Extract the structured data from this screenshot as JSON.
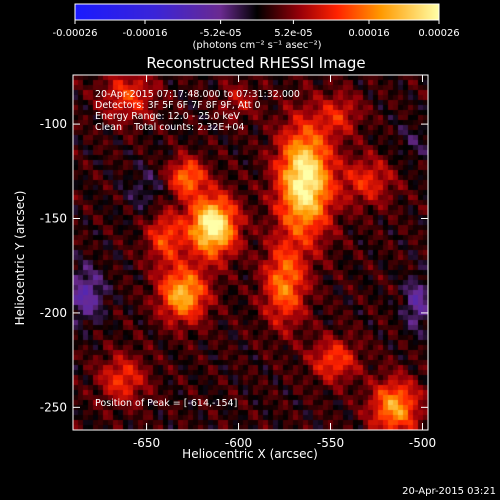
{
  "chart_data": {
    "type": "heatmap",
    "title": "Reconstructed RHESSI Image",
    "xlabel": "Heliocentric X (arcsec)",
    "ylabel": "Heliocentric Y (arcsec)",
    "xlim": [
      -690,
      -497
    ],
    "ylim": [
      -262,
      -74
    ],
    "x_ticks": [
      -650,
      -600,
      -550,
      -500
    ],
    "x_tick_labels": [
      "-650",
      "-600",
      "-550",
      "-500"
    ],
    "y_ticks": [
      -250,
      -200,
      -150,
      -100
    ],
    "y_tick_labels": [
      "-250",
      "-200",
      "-150",
      "-100"
    ],
    "colorbar": {
      "range": [
        -0.00026,
        0.00026
      ],
      "ticks": [
        -0.00026,
        -0.00016,
        -5.2e-05,
        5.2e-05,
        0.00016,
        0.00026
      ],
      "tick_labels": [
        "-0.00026",
        "-0.00016",
        "-5.2e-05",
        "5.2e-05",
        "0.00016",
        "0.00026"
      ],
      "unit_label": "(photons cm⁻² s⁻¹ asec⁻²)"
    },
    "annotations": [
      "20-Apr-2015 07:17:48.000 to 07:31:32.000",
      "Detectors: 3F 5F 6F 7F 8F 9F, Att 0",
      "Energy Range: 12.0 - 25.0 keV",
      "Clean    Total counts: 2.32E+04"
    ],
    "peak_label": "Position of Peak = [-614,-154]",
    "peak": [
      -614,
      -154
    ],
    "sources": [
      {
        "x": -614,
        "y": -154,
        "sx": 9,
        "sy": 11,
        "amp": 1.0
      },
      {
        "x": -564,
        "y": -130,
        "sx": 10,
        "sy": 20,
        "amp": 0.98
      },
      {
        "x": -630,
        "y": -190,
        "sx": 9,
        "sy": 10,
        "amp": 0.72
      },
      {
        "x": -628,
        "y": -128,
        "sx": 7,
        "sy": 7,
        "amp": 0.55
      },
      {
        "x": -575,
        "y": -185,
        "sx": 8,
        "sy": 15,
        "amp": 0.55
      },
      {
        "x": -640,
        "y": -160,
        "sx": 7,
        "sy": 10,
        "amp": 0.42
      },
      {
        "x": -548,
        "y": -225,
        "sx": 9,
        "sy": 8,
        "amp": 0.42
      },
      {
        "x": -515,
        "y": -250,
        "sx": 9,
        "sy": 10,
        "amp": 0.65
      },
      {
        "x": -663,
        "y": -235,
        "sx": 9,
        "sy": 9,
        "amp": 0.38
      },
      {
        "x": -530,
        "y": -130,
        "sx": 10,
        "sy": 9,
        "amp": 0.35
      },
      {
        "x": -660,
        "y": -85,
        "sx": 10,
        "sy": 9,
        "amp": 0.38
      },
      {
        "x": -545,
        "y": -95,
        "sx": 8,
        "sy": 8,
        "amp": 0.3
      },
      {
        "x": -600,
        "y": -88,
        "sx": 7,
        "sy": 7,
        "amp": 0.22
      }
    ],
    "negative_regions": [
      {
        "x": -683,
        "y": -190,
        "sx": 7,
        "sy": 10,
        "amp": 0.35
      },
      {
        "x": -503,
        "y": -195,
        "sx": 5,
        "sy": 10,
        "amp": 0.32
      },
      {
        "x": -650,
        "y": -135,
        "sx": 8,
        "sy": 9,
        "amp": 0.15
      },
      {
        "x": -505,
        "y": -110,
        "sx": 8,
        "sy": 8,
        "amp": 0.12
      }
    ]
  },
  "footer": {
    "timestamp": "20-Apr-2015 03:21"
  }
}
